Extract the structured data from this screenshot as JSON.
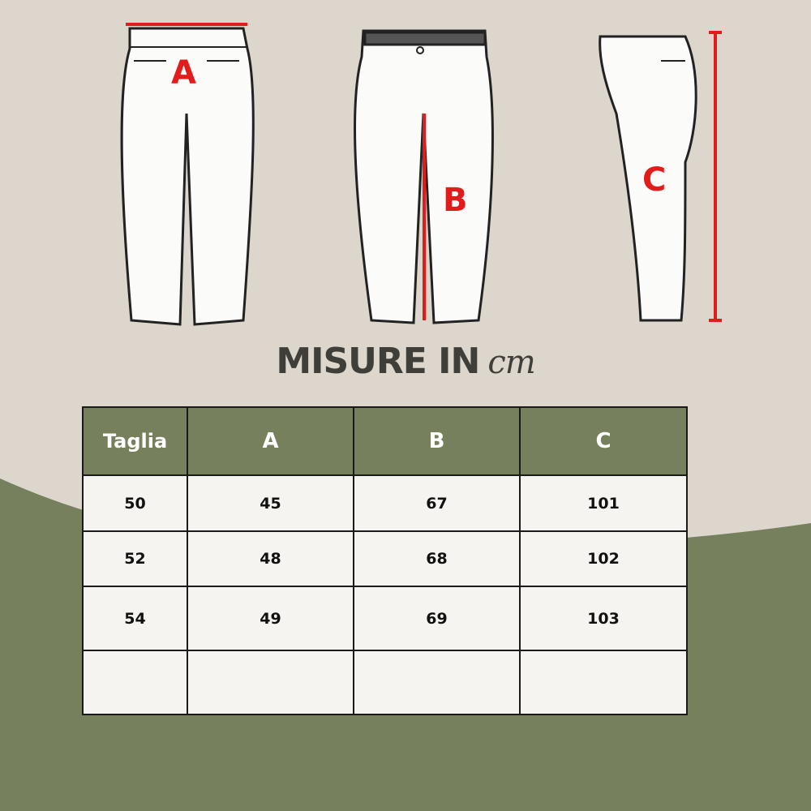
{
  "labels": {
    "a": "A",
    "b": "B",
    "c": "C"
  },
  "title": {
    "main": "MISURE IN",
    "unit": "cm"
  },
  "colors": {
    "background": "#dcd6cc",
    "green": "#77805d",
    "accent_red": "#e21b1b",
    "title": "#3f3e39"
  },
  "table": {
    "headers": [
      "Taglia",
      "A",
      "B",
      "C"
    ],
    "rows": [
      [
        "50",
        "45",
        "67",
        "101"
      ],
      [
        "52",
        "48",
        "68",
        "102"
      ],
      [
        "54",
        "49",
        "69",
        "103"
      ],
      [
        "",
        "",
        "",
        ""
      ]
    ]
  }
}
